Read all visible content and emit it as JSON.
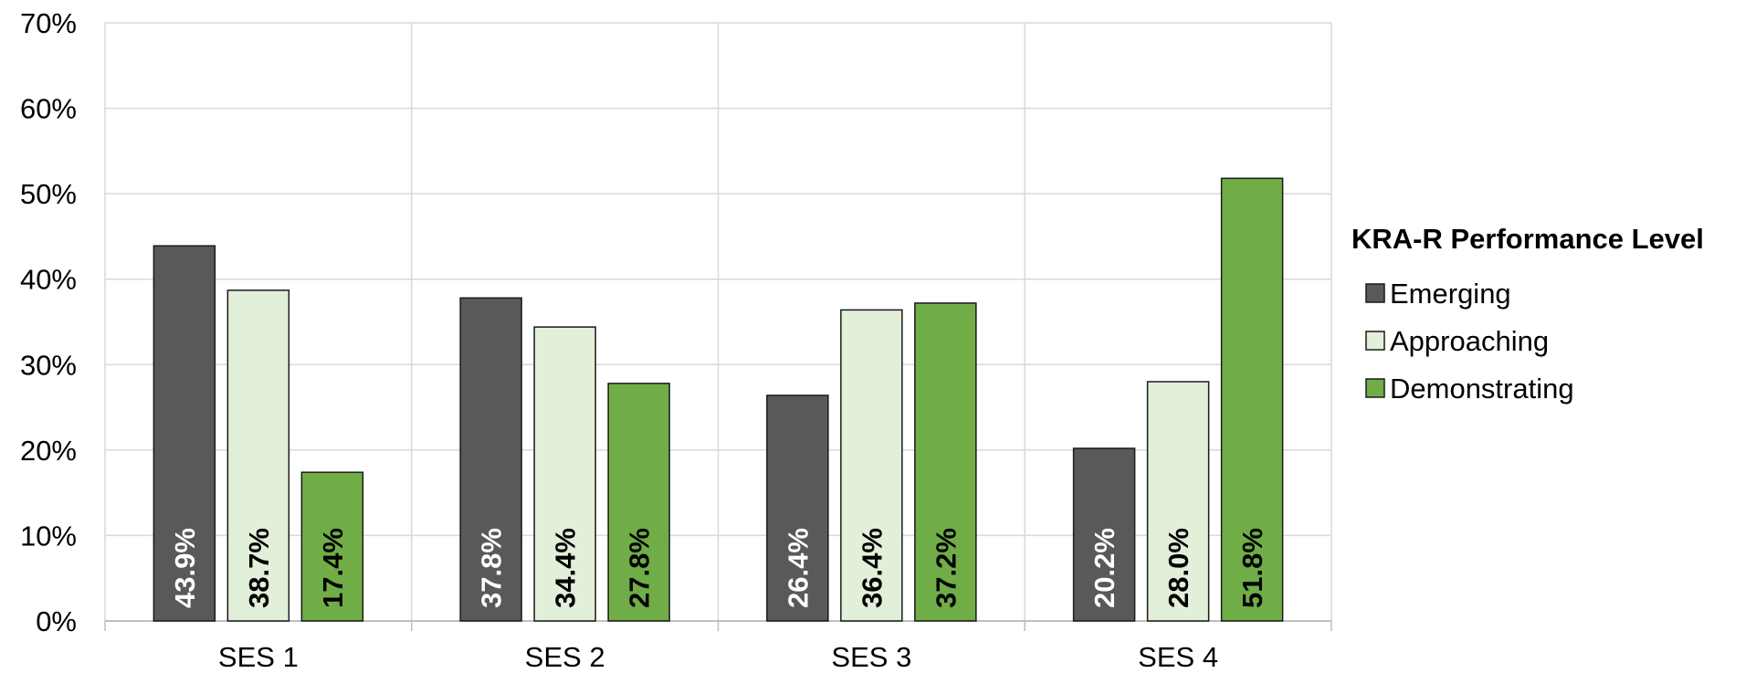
{
  "chart_data": {
    "type": "bar",
    "title": "",
    "xlabel": "",
    "ylabel": "",
    "categories": [
      "SES 1",
      "SES 2",
      "SES 3",
      "SES 4"
    ],
    "ylim": [
      0,
      70
    ],
    "yticks": [
      0,
      10,
      20,
      30,
      40,
      50,
      60,
      70
    ],
    "ytick_labels": [
      "0%",
      "10%",
      "20%",
      "30%",
      "40%",
      "50%",
      "60%",
      "70%"
    ],
    "grid": true,
    "legend": {
      "title": "KRA-R Performance Level",
      "position": "right"
    },
    "series": [
      {
        "name": "Emerging",
        "color": "#595959",
        "label_color": "#ffffff",
        "values": [
          43.9,
          37.8,
          26.4,
          20.2
        ],
        "labels": [
          "43.9%",
          "37.8%",
          "26.4%",
          "20.2%"
        ]
      },
      {
        "name": "Approaching",
        "color": "#e2efd9",
        "label_color": "#000000",
        "values": [
          38.7,
          34.4,
          36.4,
          28.0
        ],
        "labels": [
          "38.7%",
          "34.4%",
          "36.4%",
          "28.0%"
        ]
      },
      {
        "name": "Demonstrating",
        "color": "#70ad47",
        "label_color": "#000000",
        "values": [
          17.4,
          27.8,
          37.2,
          51.8
        ],
        "labels": [
          "17.4%",
          "27.8%",
          "37.2%",
          "51.8%"
        ]
      }
    ]
  }
}
